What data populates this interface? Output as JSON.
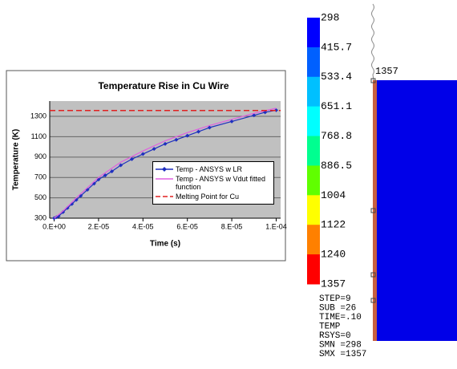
{
  "chart_data": {
    "type": "line",
    "title": "Temperature Rise in Cu Wire",
    "x_label": "Time (s)",
    "y_label": "Temperature (K)",
    "xlim": [
      -2e-06,
      0.000102
    ],
    "xticks": [
      {
        "value": 0,
        "label": "0.E+00"
      },
      {
        "value": 2e-05,
        "label": "2.E-05"
      },
      {
        "value": 4e-05,
        "label": "4.E-05"
      },
      {
        "value": 6e-05,
        "label": "6.E-05"
      },
      {
        "value": 8e-05,
        "label": "8.E-05"
      },
      {
        "value": 0.0001,
        "label": "1.E-04"
      }
    ],
    "ylim": [
      300,
      1450
    ],
    "yticks": [
      300,
      500,
      700,
      900,
      1100,
      1300
    ],
    "grid": true,
    "series": [
      {
        "name": "Temp - ANSYS w LR",
        "color": "#1f2fbf",
        "marker": true,
        "dash": false,
        "x": [
          0,
          1e-06,
          2e-06,
          4e-06,
          6e-06,
          8e-06,
          1e-05,
          1.2e-05,
          1.5e-05,
          1.8e-05,
          2e-05,
          2.3e-05,
          2.6e-05,
          3e-05,
          3.5e-05,
          4e-05,
          4.5e-05,
          5e-05,
          5.5e-05,
          6e-05,
          6.5e-05,
          7e-05,
          8e-05,
          9e-05,
          9.5e-05,
          0.0001
        ],
        "values": [
          300,
          310,
          320,
          360,
          400,
          440,
          480,
          520,
          580,
          640,
          680,
          720,
          760,
          820,
          880,
          930,
          980,
          1030,
          1070,
          1110,
          1150,
          1190,
          1250,
          1310,
          1340,
          1360
        ]
      },
      {
        "name": "Temp - ANSYS w Vdut fitted function",
        "color": "#e060e0",
        "marker": false,
        "dash": false,
        "x": [
          0,
          4e-06,
          1e-05,
          1.5e-05,
          2e-05,
          3e-05,
          4e-05,
          5e-05,
          6e-05,
          7e-05,
          8e-05,
          9e-05,
          0.0001
        ],
        "values": [
          300,
          370,
          500,
          600,
          700,
          850,
          960,
          1060,
          1140,
          1210,
          1270,
          1330,
          1380
        ]
      },
      {
        "name": "Melting Point for Cu",
        "color": "#e02020",
        "marker": false,
        "dash": true,
        "x": [
          -2e-06,
          0.000102
        ],
        "values": [
          1357,
          1357
        ]
      }
    ]
  },
  "colorbar": {
    "labels": [
      "298",
      "415.7",
      "533.4",
      "651.1",
      "768.8",
      "886.5",
      "1004",
      "1122",
      "1240",
      "1357"
    ],
    "colors": [
      "#0000ff",
      "#0060ff",
      "#00c0ff",
      "#00ffff",
      "#00ff90",
      "#60ff00",
      "#ffff00",
      "#ff8000",
      "#ff0000"
    ]
  },
  "status": [
    "STEP=9",
    "SUB =26",
    "TIME=.10",
    "TEMP",
    "RSYS=0",
    "SMN =298",
    "SMX =1357"
  ],
  "model": {
    "max_label": "1357"
  }
}
